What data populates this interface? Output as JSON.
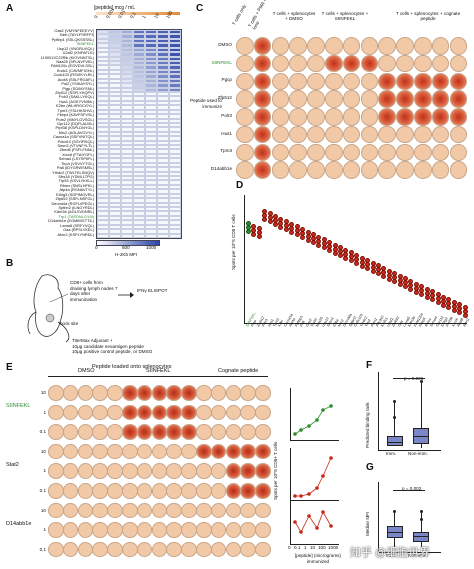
{
  "panels": {
    "A": "A",
    "B": "B",
    "C": "C",
    "D": "D",
    "E": "E",
    "F": "F",
    "G": "G"
  },
  "A": {
    "header": "[peptide] mcg / mL",
    "col_ticks": [
      "0",
      "0.001",
      "0.01",
      "0.1",
      "1",
      "10",
      "100"
    ],
    "rows": [
      "Oas2 (VMYNFEEEYV)",
      "Xdel (TAYLFSRFPI)",
      "Ppfibp1 (SSLQKSSSSL)",
      "SIINFEKL",
      "Usp12 (VNGRLVIQL)",
      "U2af2 (KNFAFLE)",
      "1190012C22Rik (KIGVNNTSL)",
      "Naa25 (SPLNVFVKL)",
      "FAM120c (EGVDVLSSL)",
      "Kndc1 (CAVMFIGHL)",
      "Ccdc103 (RSVIKYLRL)",
      "Acot8 (SSLFRGAFL)",
      "Pol2 (YSIKAYSYL)",
      "Pigp (SGIMYSNL)",
      "Zfp512 (SSFLYHQPV)",
      "Polr3 (SAKLLYKQL)",
      "Hus1 (AGKYVNINL)",
      "E2be (WLHRGCGYL)",
      "Tpm3 (YSLHKSHVL)",
      "Fkbp4 (KAVFSFVSL)",
      "Pum2 (MNYLGVSGL)",
      "Gpr112 (DQFLALML)",
      "Prpf38 (KSPLDNYGL)",
      "Mrc2 (AGLAVGVYL)",
      "Cacna1a (SSFVNITQL)",
      "Pdcd10 (SSYIRSQL)",
      "Sesn3 (VTVNFYLTL)",
      "Zbed6 (FSFLFNNL)",
      "Xrcc6 (FTAIYGFL)",
      "Sema4 (LSYSPIIFL)",
      "Tirp4 (VSVVYTGL)",
      "Pa8 (IDYGRWSMSL)",
      "Ythdc2 (TWLTKLSNQV)",
      "Sfrs18 (YDMLLTPG)",
      "Trp53 (VSVLYKKLL)",
      "Rbmx (SNSLHFKL)",
      "Atp4a (RGNAVTYL)",
      "Eif4g3 (SGPIMGVRL)",
      "Zfp692 (SSFLNSFGL)",
      "Dennd4a (RGFLVPEGL)",
      "Sptbn2 (ILNGYRDL)",
      "Kdm3b (AGLSVDNRL)",
      "Trp1 (TAPDNLGYM)",
      "D14abb1e (EGMIMGTTIL)",
      "Lama5 (SRFYVQL)",
      "Gaa (RPSLYKEL)",
      "Atxn2 (KSPLYNRDL)"
    ],
    "xaxis_ticks": [
      "0",
      "500",
      "1000"
    ],
    "xaxis_label": "H-2Kb MFI"
  },
  "B": {
    "cd8_text": "CD8+ cells from draining lymph nodes 7 days after immunization",
    "ifn_text": "IFNγ ELISPOT",
    "hock": "hock site",
    "adjuvant": "TiterMax Adjuvant +\n10μg candidate neoantigen peptide\n10μg positive control peptide, or DMSO"
  },
  "C": {
    "col_headers": [
      "T cells only",
      "T cells + PMA + Iono",
      "T cells + splenocytes + DMSO",
      "T cells + splenocytes + SIINFEKL",
      "T cells + splenocytes + cognate peptide"
    ],
    "rows": [
      "DMSO",
      "SIINFEKL",
      "Pgcp",
      "Zfp512",
      "Polr3",
      "Hus1",
      "Tpm3",
      "D14abb1e"
    ],
    "side_label": "Peptide used to immunize"
  },
  "D": {
    "ylabel": "Spots per 10^5 CD8 T cells",
    "peptides": [
      "SIINFEKL",
      "Pigp",
      "Zfp512",
      "Polr3",
      "Hus1",
      "Tpm3",
      "Xdel",
      "Cacna1a",
      "Atp4a",
      "Ppfibp1",
      "Pa8",
      "Oas2",
      "Trp53",
      "Naa25",
      "Usp12",
      "Sesn3",
      "E2be",
      "Mrc2",
      "Dennd4a",
      "Sptbn2",
      "Ccdc103",
      "Ythdc2",
      "Tirp4",
      "Pum2",
      "Pdcd10",
      "Kndc1",
      "U2af2",
      "Zfp692",
      "Gaa",
      "Lama5",
      "Kdm3b",
      "FAM120c",
      "Fkbp4",
      "Rbmx",
      "Sema4",
      "Gpr112",
      "Eif4g3",
      "Prpf38",
      "Xrcc6",
      "Acot8",
      "Atxn2"
    ]
  },
  "E": {
    "header": "Peptide loaded onto splenocytes",
    "groups": [
      "DMSO",
      "SIINFEKL",
      "Cognate peptide"
    ],
    "row_groups": [
      "SIINFEKL",
      "Stat2",
      "D14abb1e"
    ],
    "doses": [
      "10",
      "1",
      "0.1"
    ],
    "scatter_ylabel": "Spots per 10^5 CD8+ T cells",
    "scatter_xlabel": "[peptide] (micrograms) immunized",
    "scatter_xticks": [
      "0",
      "0.1",
      "1",
      "10",
      "100",
      "1000"
    ]
  },
  "F": {
    "ylabel": "Predicted binding rank",
    "pvalue": "p = 0.006",
    "cats": [
      "Imm.",
      "Non-imm."
    ]
  },
  "G": {
    "ylabel": "Median MFI",
    "pvalue": "p = 0.002",
    "cats": [
      "Imm.",
      "Non-imm."
    ]
  },
  "watermark": "知乎 @细胞世界",
  "colors": {
    "blue": "#3a56b0",
    "red": "#c82818",
    "green": "#2e8b2e",
    "well": "#f1c9a6",
    "box": "#7a86c6",
    "orange_bar": "#e58a3a"
  }
}
